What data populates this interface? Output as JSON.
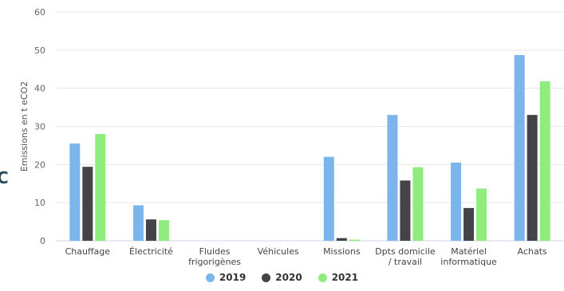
{
  "edge_fragment": "C",
  "chart_data": {
    "type": "bar",
    "categories": [
      [
        "Chauffage"
      ],
      [
        "Électricité"
      ],
      [
        "Fluides",
        "frigorigènes"
      ],
      [
        "Véhicules"
      ],
      [
        "Missions"
      ],
      [
        "Dpts domicile",
        "/ travail"
      ],
      [
        "Matériel",
        "informatique"
      ],
      [
        "Achats"
      ]
    ],
    "series": [
      {
        "name": "2019",
        "color": "#7cb5ec",
        "values": [
          25.5,
          9.3,
          0,
          0,
          22,
          33,
          20.5,
          48.7
        ]
      },
      {
        "name": "2020",
        "color": "#434348",
        "values": [
          19.4,
          5.6,
          0,
          0,
          0.7,
          15.8,
          8.6,
          33
        ]
      },
      {
        "name": "2021",
        "color": "#90ed7d",
        "values": [
          28,
          5.4,
          0,
          0,
          0.3,
          19.3,
          13.7,
          41.8
        ]
      }
    ],
    "ylabel": "Emissions en t eCO2",
    "xlabel": "",
    "ylim": [
      0,
      60
    ],
    "yticks": [
      0,
      10,
      20,
      30,
      40,
      50,
      60
    ],
    "grid": true,
    "legend_position": "bottom-center"
  }
}
